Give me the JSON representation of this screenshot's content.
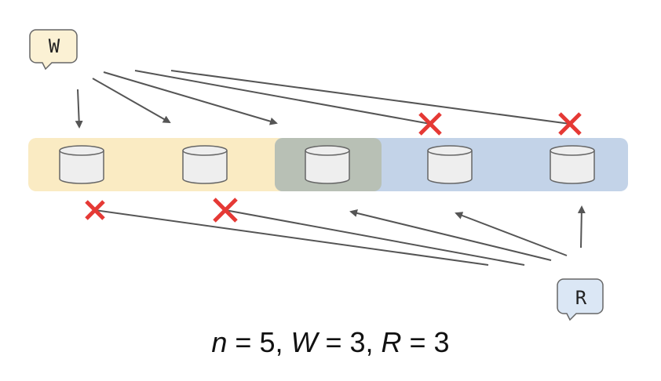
{
  "writer": {
    "label": "W"
  },
  "reader": {
    "label": "R"
  },
  "nodes": [
    {
      "id": "node-1",
      "write_zone": true,
      "read_zone": false
    },
    {
      "id": "node-2",
      "write_zone": true,
      "read_zone": false
    },
    {
      "id": "node-3",
      "write_zone": true,
      "read_zone": true
    },
    {
      "id": "node-4",
      "write_zone": false,
      "read_zone": true
    },
    {
      "id": "node-5",
      "write_zone": false,
      "read_zone": true
    }
  ],
  "write_requests": [
    {
      "target": "node-1",
      "succeeded": true
    },
    {
      "target": "node-2",
      "succeeded": true
    },
    {
      "target": "node-3",
      "succeeded": true
    },
    {
      "target": "node-4",
      "succeeded": false
    },
    {
      "target": "node-5",
      "succeeded": false
    }
  ],
  "read_requests": [
    {
      "target": "node-1",
      "succeeded": false
    },
    {
      "target": "node-2",
      "succeeded": false
    },
    {
      "target": "node-3",
      "succeeded": true
    },
    {
      "target": "node-4",
      "succeeded": true
    },
    {
      "target": "node-5",
      "succeeded": true
    }
  ],
  "caption": {
    "n_var": "n",
    "n_val": " = 5, ",
    "w_var": "W",
    "w_val": " = 3, ",
    "r_var": "R",
    "r_val": " = 3"
  },
  "colors": {
    "write_zone": "#faebc3",
    "read_zone": "#c3d3e8",
    "overlap_zone": "#b8c0b5",
    "arrow": "#555555",
    "fail_cross": "#e53935",
    "bubble_write": "#fbf1d4",
    "bubble_read": "#dbe7f5",
    "disk_fill": "#eeeeee",
    "disk_stroke": "#666666"
  }
}
